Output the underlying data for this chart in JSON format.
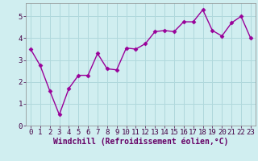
{
  "x": [
    0,
    1,
    2,
    3,
    4,
    5,
    6,
    7,
    8,
    9,
    10,
    11,
    12,
    13,
    14,
    15,
    16,
    17,
    18,
    19,
    20,
    21,
    22,
    23
  ],
  "y": [
    3.5,
    2.75,
    1.6,
    0.5,
    1.7,
    2.3,
    2.3,
    3.3,
    2.6,
    2.55,
    3.55,
    3.5,
    3.75,
    4.3,
    4.35,
    4.3,
    4.75,
    4.75,
    5.3,
    4.35,
    4.1,
    4.7,
    5.0,
    4.0
  ],
  "line_color": "#990099",
  "marker": "D",
  "marker_size": 2.5,
  "bg_color": "#d0eef0",
  "grid_color": "#b0d8dc",
  "xlabel": "Windchill (Refroidissement éolien,°C)",
  "xlabel_color": "#660066",
  "xlabel_fontsize": 7,
  "tick_fontsize": 6.5,
  "ylim": [
    0,
    5.6
  ],
  "xlim": [
    -0.5,
    23.5
  ],
  "yticks": [
    0,
    1,
    2,
    3,
    4,
    5
  ],
  "xticks": [
    0,
    1,
    2,
    3,
    4,
    5,
    6,
    7,
    8,
    9,
    10,
    11,
    12,
    13,
    14,
    15,
    16,
    17,
    18,
    19,
    20,
    21,
    22,
    23
  ],
  "line_width": 1.0,
  "spine_color": "#888888"
}
